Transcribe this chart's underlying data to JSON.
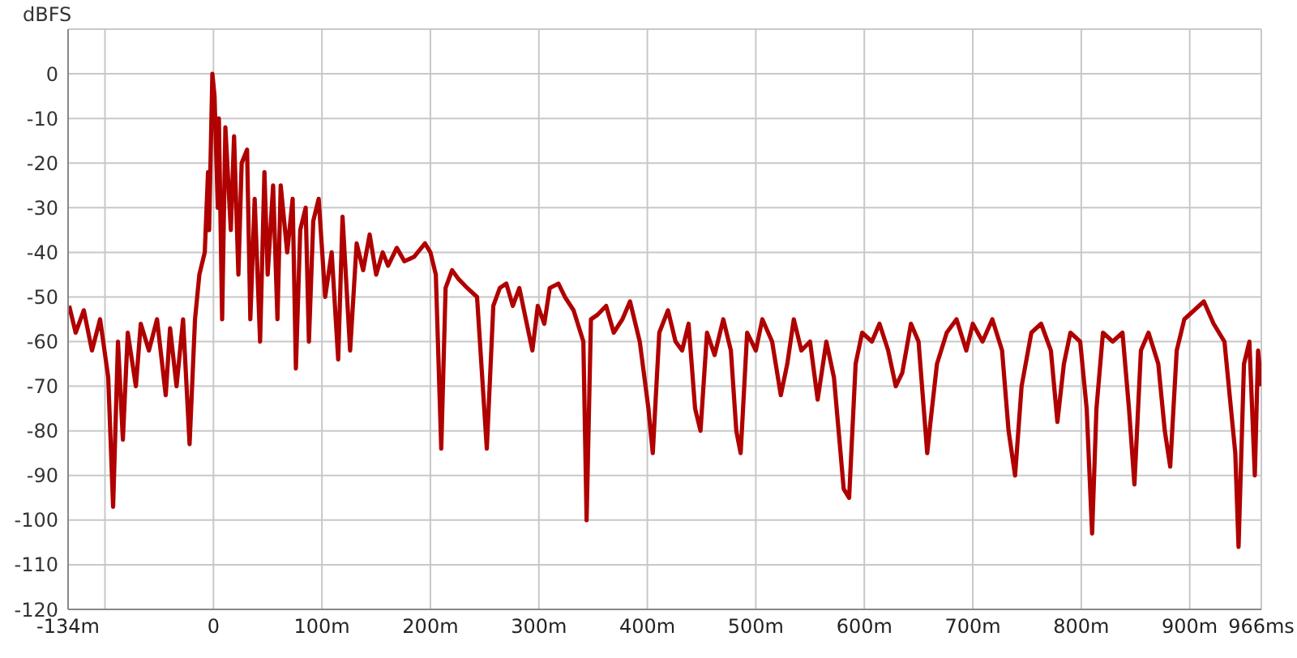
{
  "chart_data": {
    "type": "line",
    "ylabel": "dBFS",
    "xlim": [
      -134,
      966
    ],
    "ylim": [
      -120,
      10
    ],
    "xticks": [
      {
        "value": -134,
        "label": "-134m"
      },
      {
        "value": -100,
        "label": null
      },
      0,
      {
        "value": 100,
        "label": "100m"
      },
      {
        "value": 200,
        "label": "200m"
      },
      {
        "value": 300,
        "label": "300m"
      },
      {
        "value": 400,
        "label": "400m"
      },
      {
        "value": 500,
        "label": "500m"
      },
      {
        "value": 600,
        "label": "600m"
      },
      {
        "value": 700,
        "label": "700m"
      },
      {
        "value": 800,
        "label": "800m"
      },
      {
        "value": 900,
        "label": "900m"
      },
      {
        "value": 966,
        "label": "966ms"
      }
    ],
    "yticks": [
      -120,
      -110,
      -100,
      -90,
      -80,
      -70,
      -60,
      -50,
      -40,
      -30,
      -20,
      -10,
      0
    ],
    "grid": true,
    "marker": "none",
    "line_style": "solid",
    "series": [
      {
        "color": "#b00000",
        "x": [
          -133,
          -127,
          -119.5,
          -112,
          -104.5,
          -97,
          -92.5,
          -88,
          -83.5,
          -79,
          -71.5,
          -67,
          -59.5,
          -52,
          -44,
          -40,
          -34,
          -28,
          -22,
          -17,
          -13,
          -8,
          -5,
          -4,
          -1,
          1,
          4,
          5,
          8,
          11,
          16,
          19,
          23,
          26,
          31,
          34,
          38,
          43,
          47,
          50,
          55,
          59,
          62,
          68,
          73,
          76,
          80,
          85,
          88,
          92,
          97,
          103,
          109,
          115,
          119,
          126,
          132,
          138,
          144,
          150,
          156,
          161,
          169,
          176,
          185,
          195,
          200,
          205,
          210,
          214,
          220,
          226,
          234,
          243,
          252,
          258,
          264,
          270,
          276,
          282,
          288,
          294,
          299,
          305,
          310,
          318,
          324,
          332,
          341,
          344,
          348,
          354,
          362,
          369,
          377,
          384,
          393,
          401,
          405,
          411,
          419,
          426,
          432,
          438,
          444,
          449,
          455,
          462,
          470,
          477,
          482,
          486,
          492,
          500,
          506,
          515,
          523,
          529,
          535,
          542,
          550,
          557,
          565,
          572,
          581,
          586,
          592,
          598,
          607,
          614,
          622,
          629,
          635,
          643,
          650,
          658,
          661,
          667,
          676,
          685,
          694,
          700,
          709,
          718,
          727,
          733,
          739,
          745,
          754,
          763,
          772,
          778,
          784,
          790,
          799,
          805,
          810,
          814,
          820,
          829,
          838,
          844,
          849,
          855,
          862,
          871,
          877,
          882,
          888,
          895,
          904,
          913,
          922,
          932,
          938,
          942,
          945,
          950,
          955,
          960,
          963,
          966
        ],
        "values": [
          -52,
          -58,
          -53,
          -62,
          -55,
          -68,
          -97,
          -60,
          -82,
          -58,
          -70,
          -56,
          -62,
          -55,
          -72,
          -57,
          -70,
          -55,
          -83,
          -55,
          -45,
          -40,
          -22,
          -35,
          0,
          -5,
          -30,
          -10,
          -55,
          -12,
          -35,
          -14,
          -45,
          -20,
          -17,
          -55,
          -28,
          -60,
          -22,
          -45,
          -25,
          -55,
          -25,
          -40,
          -28,
          -66,
          -35,
          -30,
          -60,
          -33,
          -28,
          -50,
          -40,
          -64,
          -32,
          -62,
          -38,
          -44,
          -36,
          -45,
          -40,
          -43,
          -39,
          -42,
          -41,
          -38,
          -40,
          -45,
          -84,
          -48,
          -44,
          -46,
          -48,
          -50,
          -84,
          -52,
          -48,
          -47,
          -52,
          -48,
          -55,
          -62,
          -52,
          -56,
          -48,
          -47,
          -50,
          -53,
          -60,
          -100,
          -55,
          -54,
          -52,
          -58,
          -55,
          -51,
          -60,
          -75,
          -85,
          -58,
          -53,
          -60,
          -62,
          -56,
          -75,
          -80,
          -58,
          -63,
          -55,
          -62,
          -80,
          -85,
          -58,
          -62,
          -55,
          -60,
          -72,
          -65,
          -55,
          -62,
          -60,
          -73,
          -60,
          -68,
          -93,
          -95,
          -65,
          -58,
          -60,
          -56,
          -62,
          -70,
          -67,
          -56,
          -60,
          -85,
          -78,
          -65,
          -58,
          -55,
          -62,
          -56,
          -60,
          -55,
          -62,
          -80,
          -90,
          -70,
          -58,
          -56,
          -62,
          -78,
          -65,
          -58,
          -60,
          -75,
          -103,
          -75,
          -58,
          -60,
          -58,
          -75,
          -92,
          -62,
          -58,
          -65,
          -80,
          -88,
          -62,
          -55,
          -53,
          -51,
          -56,
          -60,
          -75,
          -85,
          -106,
          -65,
          -60,
          -90,
          -62,
          -70
        ]
      }
    ]
  }
}
